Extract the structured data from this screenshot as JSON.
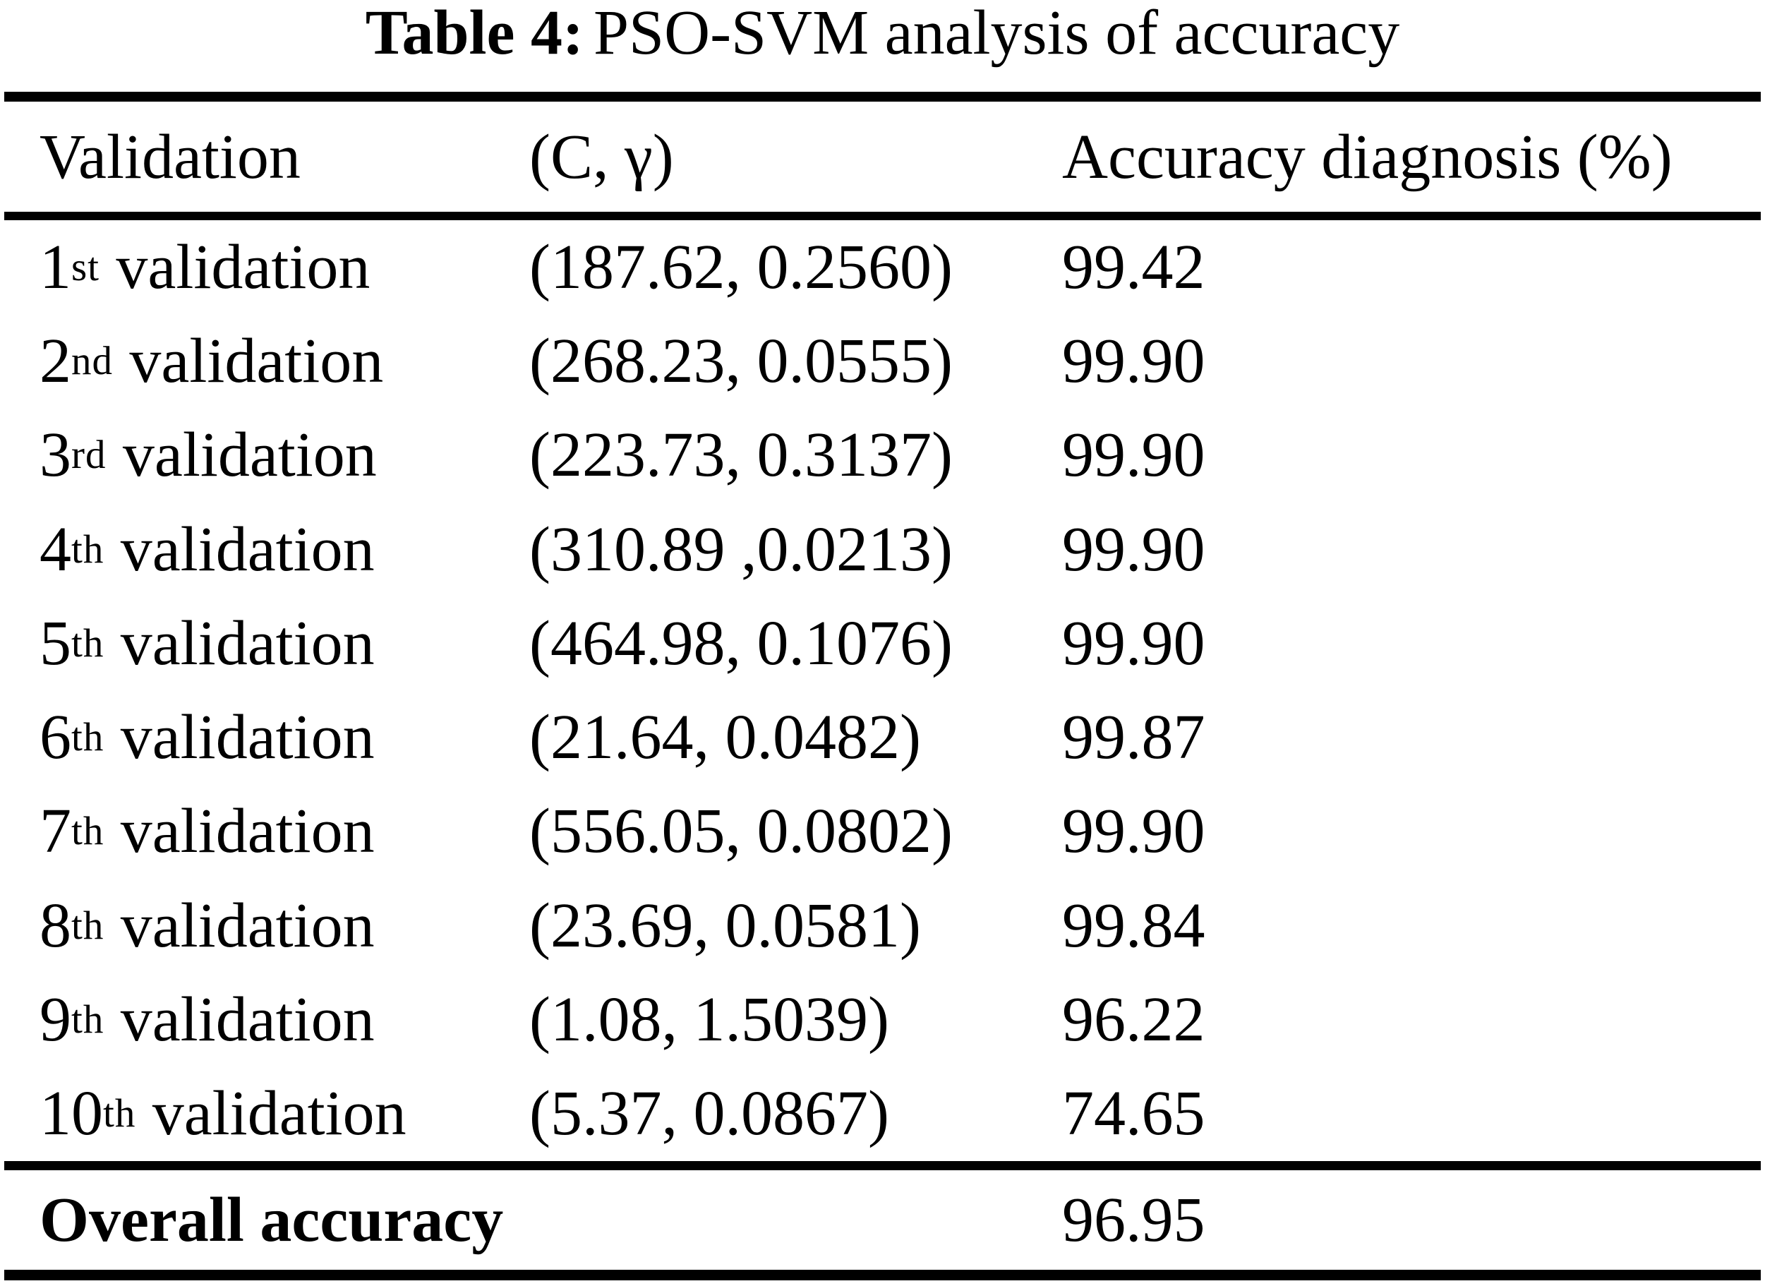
{
  "title": {
    "bold": "Table 4:",
    "rest": "PSO-SVM analysis of accuracy"
  },
  "table": {
    "columns": [
      {
        "label": "Validation"
      },
      {
        "label": "(C, γ)"
      },
      {
        "label": "Accuracy diagnosis (%)"
      }
    ],
    "rows": [
      {
        "ordinal": "1",
        "suffix": "st",
        "label": "validation",
        "c_gamma": "(187.62, 0.2560)",
        "accuracy": "99.42"
      },
      {
        "ordinal": "2",
        "suffix": "nd",
        "label": "validation",
        "c_gamma": "(268.23, 0.0555)",
        "accuracy": "99.90"
      },
      {
        "ordinal": "3",
        "suffix": "rd",
        "label": "validation",
        "c_gamma": "(223.73, 0.3137)",
        "accuracy": "99.90"
      },
      {
        "ordinal": "4",
        "suffix": "th",
        "label": "validation",
        "c_gamma": "(310.89 ,0.0213)",
        "accuracy": "99.90"
      },
      {
        "ordinal": "5",
        "suffix": "th",
        "label": "validation",
        "c_gamma": "(464.98, 0.1076)",
        "accuracy": "99.90"
      },
      {
        "ordinal": "6",
        "suffix": "th",
        "label": "validation",
        "c_gamma": "(21.64, 0.0482)",
        "accuracy": "99.87"
      },
      {
        "ordinal": "7",
        "suffix": "th",
        "label": "validation",
        "c_gamma": "(556.05, 0.0802)",
        "accuracy": "99.90"
      },
      {
        "ordinal": "8",
        "suffix": "th",
        "label": "validation",
        "c_gamma": "(23.69, 0.0581)",
        "accuracy": "99.84"
      },
      {
        "ordinal": "9",
        "suffix": "th",
        "label": "validation",
        "c_gamma": "(1.08, 1.5039)",
        "accuracy": "96.22"
      },
      {
        "ordinal": "10",
        "suffix": "th",
        "label": "validation",
        "c_gamma": "(5.37, 0.0867)",
        "accuracy": "74.65"
      }
    ],
    "footer": {
      "label": "Overall accuracy",
      "accuracy": "96.95"
    }
  }
}
